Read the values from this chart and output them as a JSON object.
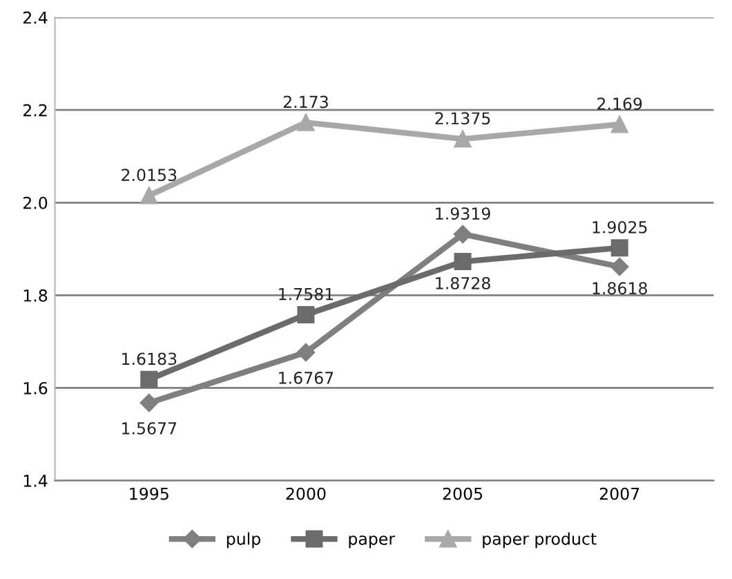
{
  "chart_data": {
    "type": "line",
    "categories": [
      "1995",
      "2000",
      "2005",
      "2007"
    ],
    "series": [
      {
        "name": "pulp",
        "color": "#7f7f7f",
        "marker": "diamond",
        "values": [
          1.5677,
          1.6767,
          1.9319,
          1.8618
        ]
      },
      {
        "name": "paper",
        "color": "#6b6b6b",
        "marker": "square",
        "values": [
          1.6183,
          1.7581,
          1.8728,
          1.9025
        ]
      },
      {
        "name": "paper product",
        "color": "#a8a8a8",
        "marker": "triangle",
        "values": [
          2.0153,
          2.173,
          2.1375,
          2.169
        ]
      }
    ],
    "ylim": [
      1.4,
      2.4
    ],
    "yticks": [
      {
        "value": 1.4,
        "label": "1.4"
      },
      {
        "value": 1.6,
        "label": "1.6"
      },
      {
        "value": 1.8,
        "label": "1.8"
      },
      {
        "value": 2.0,
        "label": "2.0"
      },
      {
        "value": 2.2,
        "label": "2.2"
      },
      {
        "value": 2.4,
        "label": "2.4"
      }
    ],
    "grid": "y",
    "legend": "bottom",
    "data_labels": true,
    "line_style": "solid"
  }
}
